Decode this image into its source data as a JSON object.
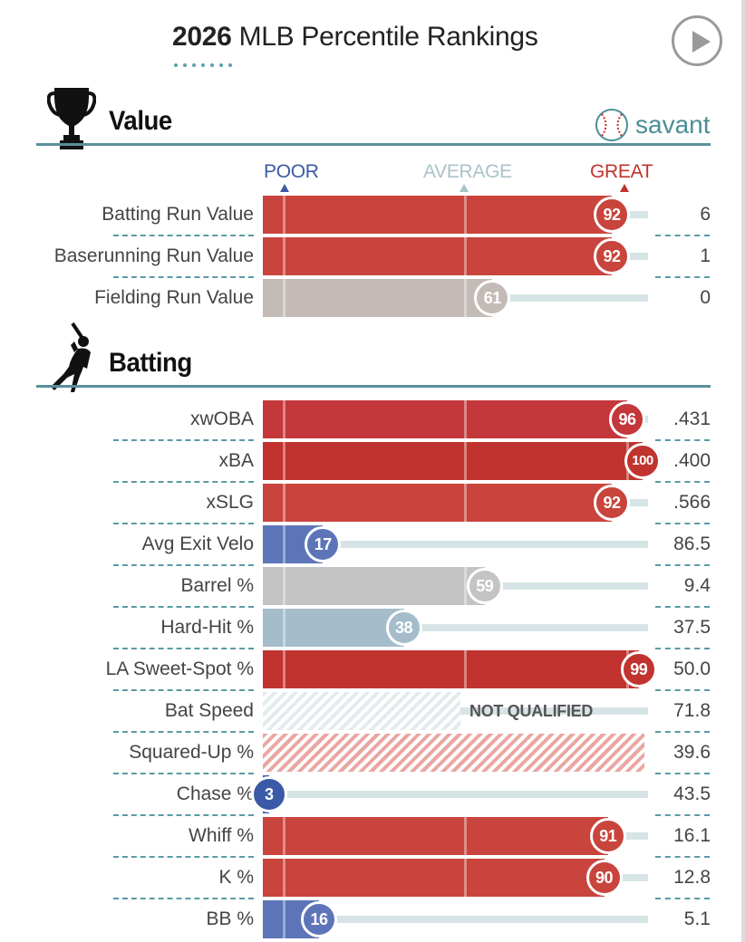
{
  "header": {
    "year": "2026",
    "title": "MLB Percentile Rankings"
  },
  "brand": {
    "logo_text": "savant"
  },
  "scale": {
    "poor": "POOR",
    "average": "AVERAGE",
    "great": "GREAT"
  },
  "colors": {
    "great": "#c0332e",
    "good": "#c8443c",
    "neutral_warm": "#c4bbb7",
    "neutral": "#c4c4c4",
    "cool": "#a5bccb",
    "poor": "#5d75b8",
    "very_poor": "#3a5aa8",
    "track": "#d6e4e6",
    "accent": "#4b8e97"
  },
  "sections": {
    "value": {
      "title": "Value",
      "icon": "trophy-icon",
      "rows": [
        {
          "label": "Batting Run Value",
          "percentile": 92,
          "value": "6",
          "color": "#c8443c"
        },
        {
          "label": "Baserunning Run Value",
          "percentile": 92,
          "value": "1",
          "color": "#c8443c"
        },
        {
          "label": "Fielding Run Value",
          "percentile": 61,
          "value": "0",
          "color": "#c4bbb7"
        }
      ]
    },
    "batting": {
      "title": "Batting",
      "icon": "batter-icon",
      "rows": [
        {
          "label": "xwOBA",
          "percentile": 96,
          "value": ".431",
          "color": "#c4373a"
        },
        {
          "label": "xBA",
          "percentile": 100,
          "value": ".400",
          "color": "#c0332e"
        },
        {
          "label": "xSLG",
          "percentile": 92,
          "value": ".566",
          "color": "#c8443c"
        },
        {
          "label": "Avg Exit Velo",
          "percentile": 17,
          "value": "86.5",
          "color": "#5d75b8"
        },
        {
          "label": "Barrel %",
          "percentile": 59,
          "value": "9.4",
          "color": "#c4c4c4"
        },
        {
          "label": "Hard-Hit %",
          "percentile": 38,
          "value": "37.5",
          "color": "#a5bccb"
        },
        {
          "label": "LA Sweet-Spot %",
          "percentile": 99,
          "value": "50.0",
          "color": "#c0332e"
        },
        {
          "label": "Bat Speed",
          "status": "NOT QUALIFIED",
          "value": "71.8",
          "pattern": "hatch-gray"
        },
        {
          "label": "Squared-Up %",
          "value": "39.6",
          "pattern": "hatch-red"
        },
        {
          "label": "Chase %",
          "percentile": 3,
          "value": "43.5",
          "color": "#3a5aa8"
        },
        {
          "label": "Whiff %",
          "percentile": 91,
          "value": "16.1",
          "color": "#c8443c"
        },
        {
          "label": "K %",
          "percentile": 90,
          "value": "12.8",
          "color": "#c8443c"
        },
        {
          "label": "BB %",
          "percentile": 16,
          "value": "5.1",
          "color": "#5d75b8"
        }
      ]
    }
  }
}
